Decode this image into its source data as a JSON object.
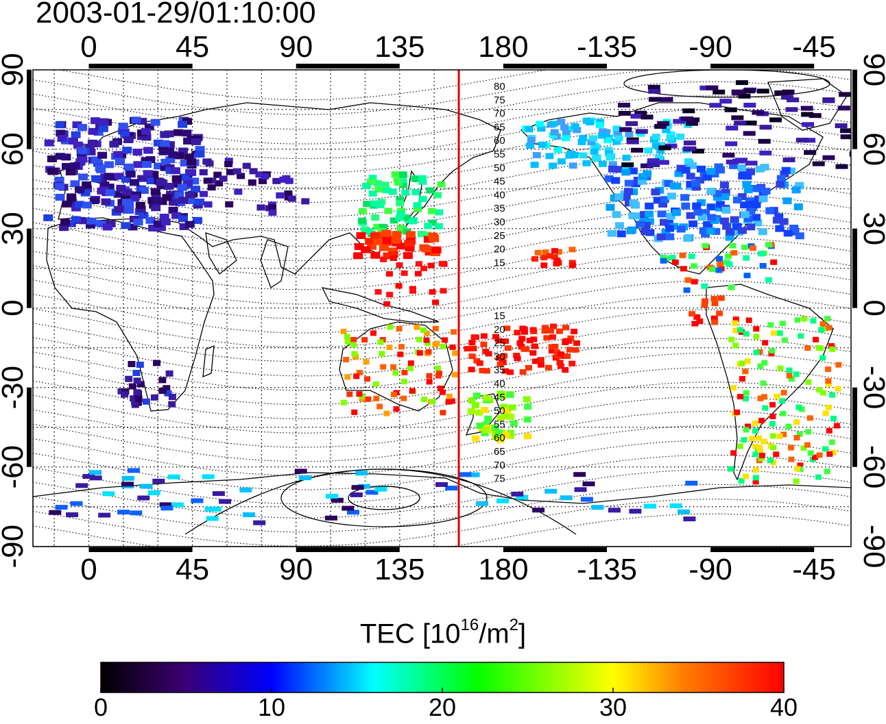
{
  "title": "2003-01-29/01:10:00",
  "map": {
    "top_lon_labels": [
      "0",
      "45",
      "90",
      "135",
      "180",
      "-135",
      "-90",
      "-45"
    ],
    "bottom_lon_labels": [
      "0",
      "45",
      "90",
      "135",
      "180",
      "-135",
      "-90",
      "-45"
    ],
    "left_lat_labels": [
      "90",
      "60",
      "30",
      "0",
      "-30",
      "-60",
      "-90"
    ],
    "right_lat_labels": [
      "90",
      "60",
      "30",
      "0",
      "-30",
      "-60",
      "-90"
    ],
    "north_contour_labels": [
      "80",
      "75",
      "70",
      "65",
      "60",
      "55",
      "50",
      "45",
      "40",
      "35",
      "30",
      "25",
      "20",
      "15"
    ],
    "south_contour_labels": [
      "15",
      "20",
      "25",
      "30",
      "35",
      "40",
      "45",
      "50",
      "55",
      "60",
      "65",
      "70",
      "75"
    ],
    "meridian_line_color": "#e00000"
  },
  "colorbar": {
    "title_main": "TEC  [10",
    "title_exp1": "16",
    "title_mid": "/m",
    "title_exp2": "2",
    "title_end": "]",
    "ticks": [
      "0",
      "10",
      "20",
      "30",
      "40"
    ],
    "colors": [
      "#000000",
      "#3a0070",
      "#0000ff",
      "#00ffff",
      "#00ff00",
      "#ffff00",
      "#ff8000",
      "#ff0000"
    ]
  }
}
